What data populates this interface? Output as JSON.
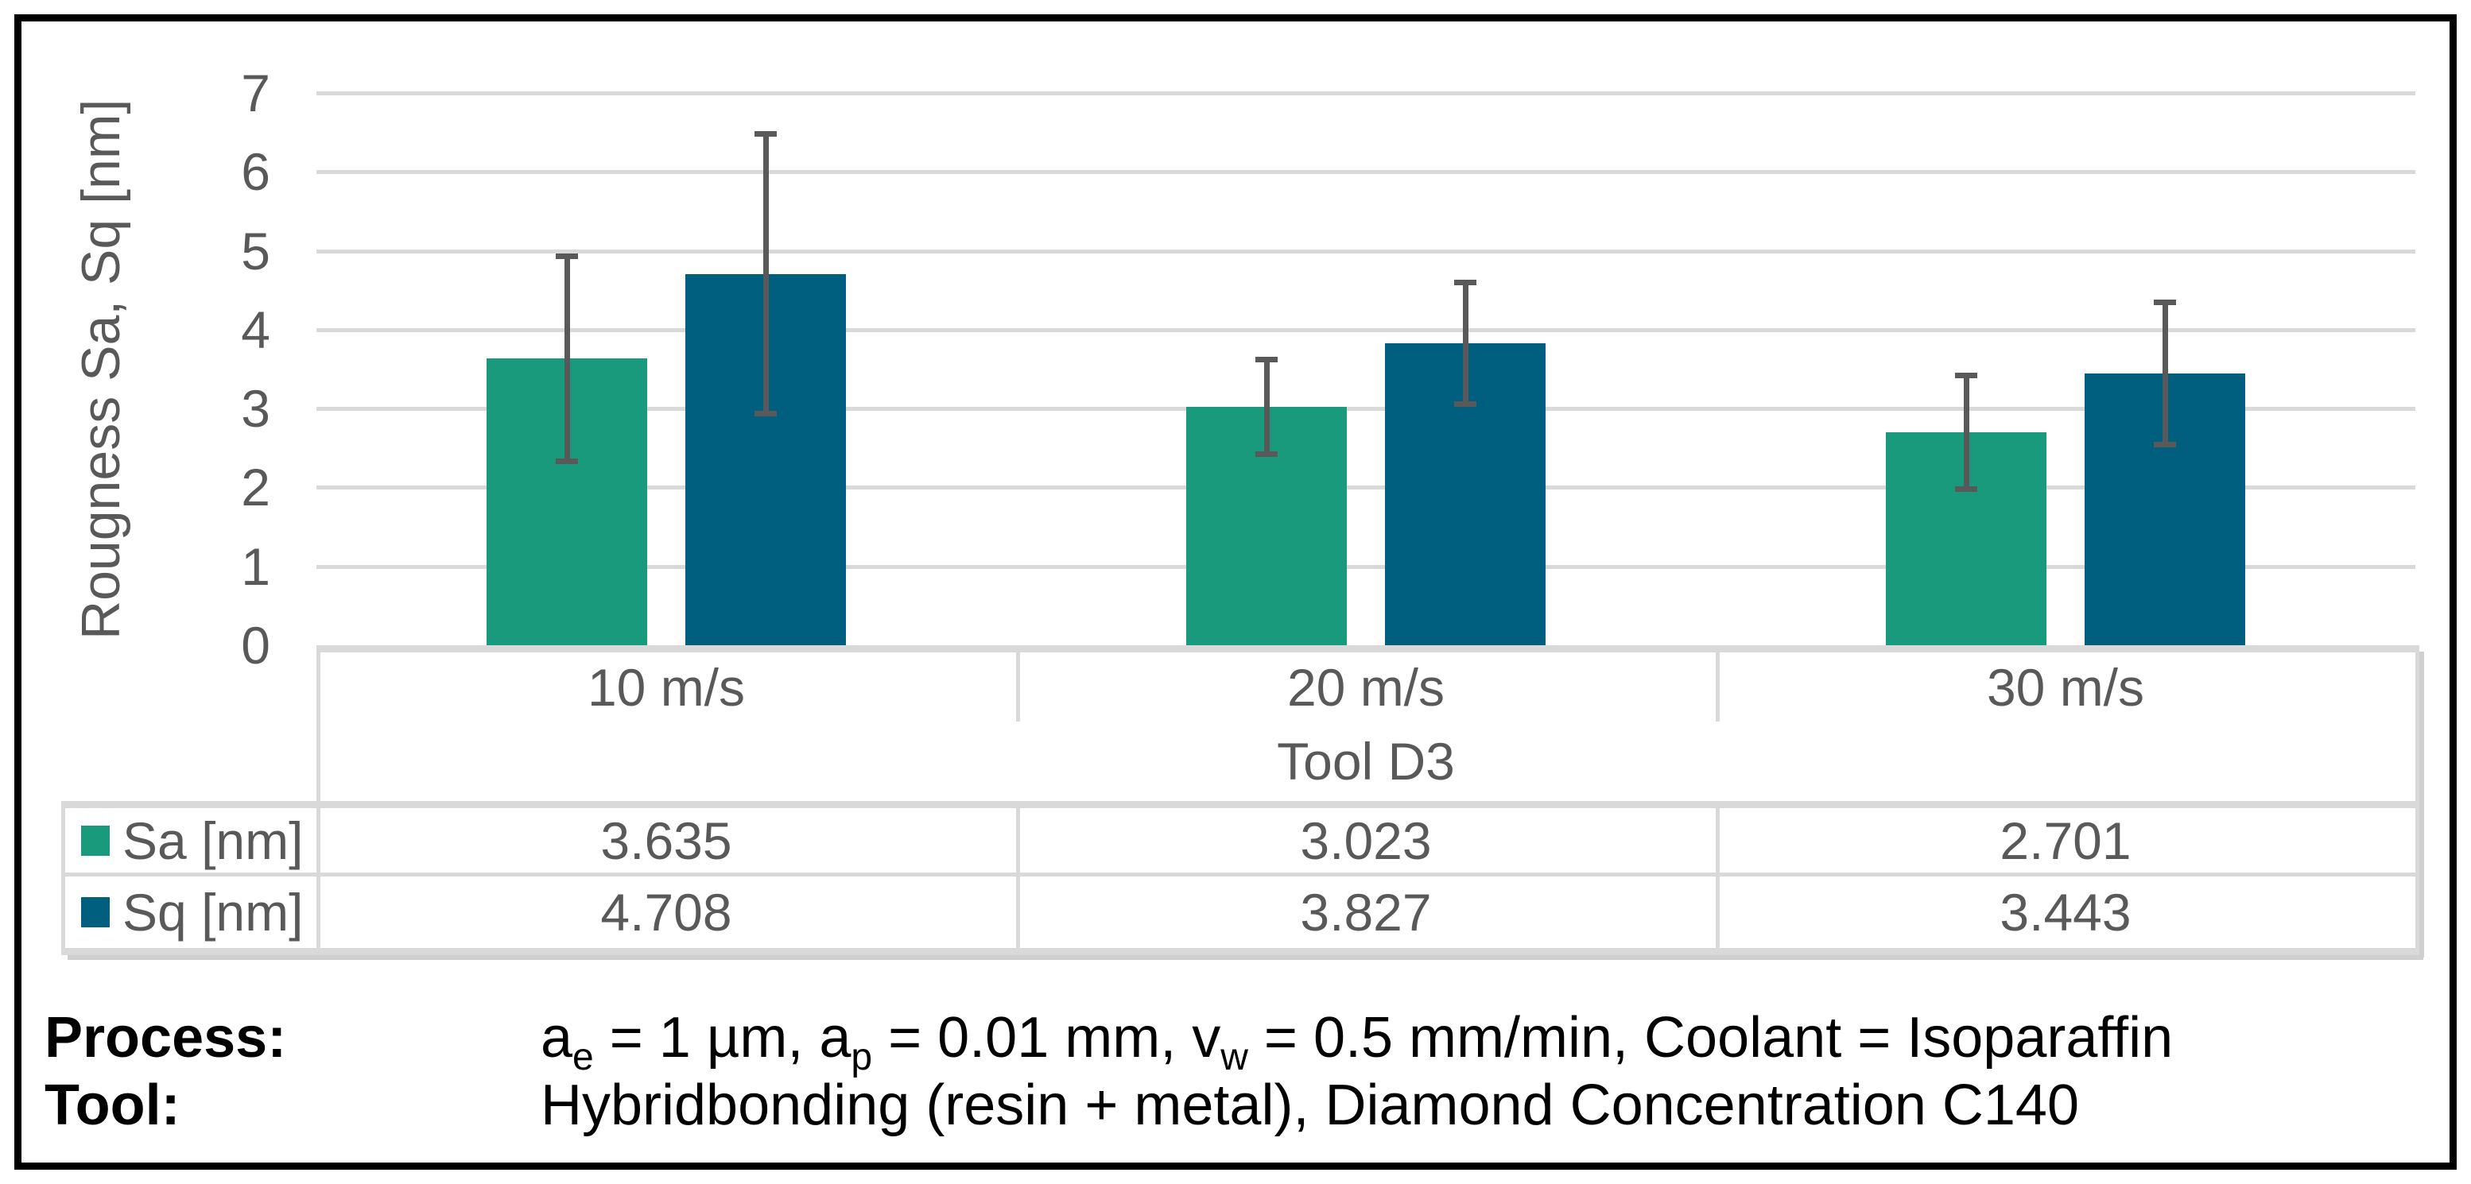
{
  "chart_data": {
    "type": "bar",
    "title": "",
    "ylabel": "Rougness Sa, Sq [nm]",
    "xlabel": "",
    "ylim": [
      0,
      7
    ],
    "yticks": [
      0,
      1,
      2,
      3,
      4,
      5,
      6,
      7
    ],
    "grid": true,
    "categories": [
      "10 m/s",
      "20 m/s",
      "30 m/s"
    ],
    "category_axis_group_label": "Tool D3",
    "legend_position": "table-left",
    "series": [
      {
        "name": "Sa [nm]",
        "color": "#1A9A7C",
        "values": [
          3.635,
          3.023,
          2.701
        ],
        "errors": [
          1.3,
          0.6,
          0.72
        ]
      },
      {
        "name": "Sq [nm]",
        "color": "#005F7E",
        "values": [
          4.708,
          3.827,
          3.443
        ],
        "errors": [
          1.77,
          0.77,
          0.9
        ]
      }
    ]
  },
  "table": {
    "column_headers": [
      "10 m/s",
      "20 m/s",
      "30 m/s"
    ],
    "group_header": "Tool D3",
    "rows": [
      {
        "label": "Sa [nm]",
        "swatch": "#1A9A7C",
        "values": [
          "3.635",
          "3.023",
          "2.701"
        ]
      },
      {
        "label": "Sq [nm]",
        "swatch": "#005F7E",
        "values": [
          "4.708",
          "3.827",
          "3.443"
        ]
      }
    ]
  },
  "footer": {
    "process_label": "Process:",
    "process_value_segments": [
      {
        "text": "a"
      },
      {
        "sub": "e"
      },
      {
        "text": " = 1 µm, a"
      },
      {
        "sub": "p"
      },
      {
        "text": " = 0.01 mm, v"
      },
      {
        "sub": "w"
      },
      {
        "text": " = 0.5 mm/min, Coolant = Isoparaffin"
      }
    ],
    "tool_label": "Tool:",
    "tool_value_segments": [
      {
        "text": "Hybridbonding (resin + metal), Diamond Concentration C140"
      }
    ]
  },
  "colors": {
    "sa_green": "#1A9A7C",
    "sq_blue": "#005F7E",
    "gridline_gray": "#d9d9d9",
    "text_gray": "#595959",
    "error_bar_gray": "#595959",
    "frame_black": "#000000",
    "background": "#ffffff"
  }
}
